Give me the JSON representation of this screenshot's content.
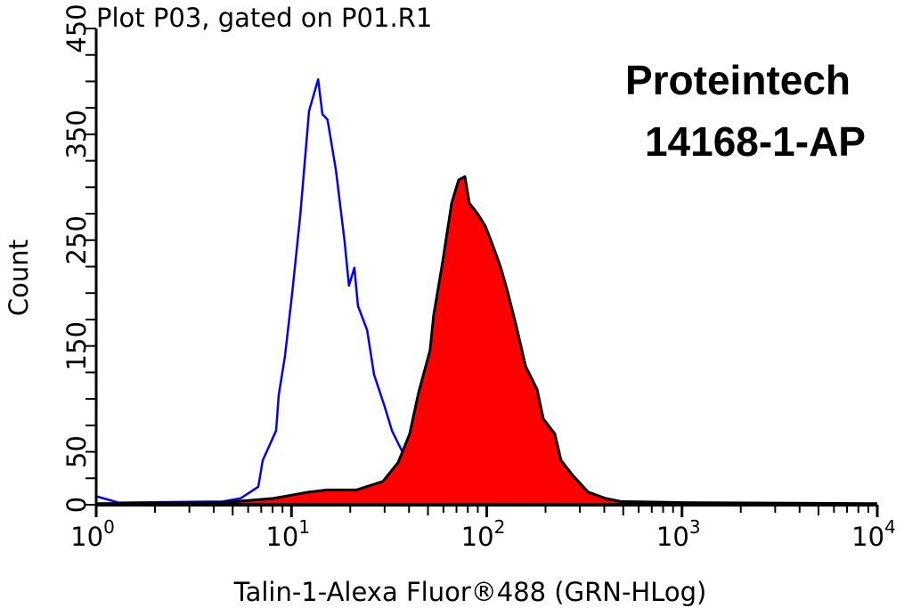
{
  "chart_data": {
    "type": "area",
    "title": "Plot P03, gated on P01.R1",
    "watermark": [
      "Proteintech",
      "14168-1-AP"
    ],
    "xlabel": "Talin-1-Alexa Fluor®488 (GRN-HLog)",
    "ylabel": "Count",
    "x_scale": "log",
    "xlim": [
      1,
      10000
    ],
    "ylim": [
      0,
      450
    ],
    "x_ticks": [
      {
        "base": "10",
        "exp": "0",
        "value": 1
      },
      {
        "base": "10",
        "exp": "1",
        "value": 10
      },
      {
        "base": "10",
        "exp": "2",
        "value": 100
      },
      {
        "base": "10",
        "exp": "3",
        "value": 1000
      },
      {
        "base": "10",
        "exp": "4",
        "value": 10000
      }
    ],
    "y_tick_labels": [
      "0",
      "50",
      "150",
      "250",
      "350",
      "450"
    ],
    "y_minor_step": 25,
    "grid": false,
    "series": [
      {
        "style": "outline",
        "color": "#0000ff",
        "points": [
          [
            1,
            8
          ],
          [
            1.3,
            2
          ],
          [
            4.44,
            3
          ],
          [
            5.48,
            6
          ],
          [
            6.76,
            17
          ],
          [
            7.13,
            42
          ],
          [
            8.34,
            70
          ],
          [
            8.61,
            104
          ],
          [
            9.26,
            140
          ],
          [
            10.1,
            201
          ],
          [
            11.1,
            274
          ],
          [
            12.3,
            372
          ],
          [
            13.7,
            402
          ],
          [
            14.4,
            369
          ],
          [
            15.3,
            364
          ],
          [
            16.9,
            316
          ],
          [
            18.7,
            249
          ],
          [
            19.7,
            207
          ],
          [
            21.0,
            224
          ],
          [
            21.9,
            188
          ],
          [
            24.4,
            165
          ],
          [
            26.5,
            123
          ],
          [
            30.1,
            92
          ],
          [
            32.7,
            70
          ],
          [
            37.4,
            48
          ],
          [
            48.2,
            23
          ],
          [
            59.4,
            12
          ],
          [
            73.3,
            4
          ],
          [
            100,
            2
          ],
          [
            1000,
            1
          ],
          [
            10000,
            1
          ]
        ]
      },
      {
        "style": "filled",
        "color": "#ff0000",
        "outline": "#000000",
        "points": [
          [
            1,
            1
          ],
          [
            4.44,
            2
          ],
          [
            8.09,
            6
          ],
          [
            12.3,
            12
          ],
          [
            15.2,
            14
          ],
          [
            21.5,
            14
          ],
          [
            29.4,
            22
          ],
          [
            35.2,
            40
          ],
          [
            40.3,
            67
          ],
          [
            44.8,
            106
          ],
          [
            51.3,
            146
          ],
          [
            53.5,
            179
          ],
          [
            59.4,
            229
          ],
          [
            66.1,
            285
          ],
          [
            71.8,
            307
          ],
          [
            77.3,
            310
          ],
          [
            81.5,
            285
          ],
          [
            90.5,
            274
          ],
          [
            98.4,
            263
          ],
          [
            107,
            246
          ],
          [
            118,
            224
          ],
          [
            128,
            201
          ],
          [
            142,
            168
          ],
          [
            158,
            131
          ],
          [
            181,
            109
          ],
          [
            195,
            81
          ],
          [
            223,
            67
          ],
          [
            240,
            42
          ],
          [
            275,
            28
          ],
          [
            330,
            12
          ],
          [
            406,
            6
          ],
          [
            486,
            3
          ],
          [
            1000,
            2
          ],
          [
            10000,
            1
          ]
        ]
      }
    ]
  }
}
